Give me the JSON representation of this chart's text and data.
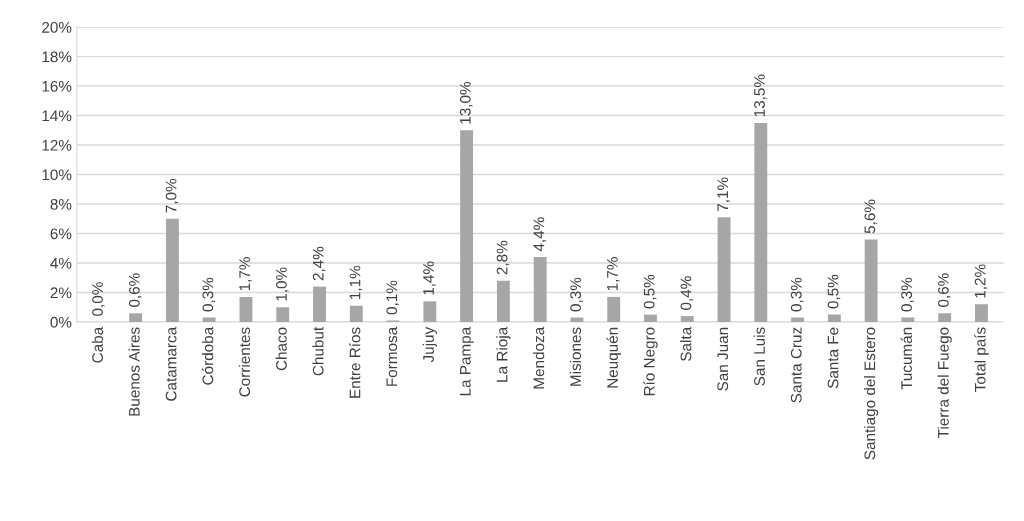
{
  "chart_data": {
    "type": "bar",
    "categories": [
      "Caba",
      "Buenos Aires",
      "Catamarca",
      "Córdoba",
      "Corrientes",
      "Chaco",
      "Chubut",
      "Entre Ríos",
      "Formosa",
      "Jujuy",
      "La Pampa",
      "La Rioja",
      "Mendoza",
      "Misiones",
      "Neuquén",
      "Río Negro",
      "Salta",
      "San Juan",
      "San Luis",
      "Santa Cruz",
      "Santa Fe",
      "Santiago del Estero",
      "Tucumán",
      "Tierra del Fuego",
      "Total país"
    ],
    "values": [
      0.0,
      0.6,
      7.0,
      0.3,
      1.7,
      1.0,
      2.4,
      1.1,
      0.1,
      1.4,
      13.0,
      2.8,
      4.4,
      0.3,
      1.7,
      0.5,
      0.4,
      7.1,
      13.5,
      0.3,
      0.5,
      5.6,
      0.3,
      0.6,
      1.2
    ],
    "value_labels": [
      "0,0%",
      "0,6%",
      "7,0%",
      "0,3%",
      "1,7%",
      "1,0%",
      "2,4%",
      "1,1%",
      "0,1%",
      "1,4%",
      "13,0%",
      "2,8%",
      "4,4%",
      "0,3%",
      "1,7%",
      "0,5%",
      "0,4%",
      "7,1%",
      "13,5%",
      "0,3%",
      "0,5%",
      "5,6%",
      "0,3%",
      "0,6%",
      "1,2%"
    ],
    "color": "#a6a6a6",
    "ylim": [
      0,
      20
    ],
    "yticks": [
      {
        "value": 0,
        "label": "0%"
      },
      {
        "value": 2,
        "label": "2%"
      },
      {
        "value": 4,
        "label": "4%"
      },
      {
        "value": 6,
        "label": "6%"
      },
      {
        "value": 8,
        "label": "8%"
      },
      {
        "value": 10,
        "label": "10%"
      },
      {
        "value": 12,
        "label": "12%"
      },
      {
        "value": 14,
        "label": "14%"
      },
      {
        "value": 16,
        "label": "16%"
      },
      {
        "value": 18,
        "label": "18%"
      },
      {
        "value": 20,
        "label": "20%"
      }
    ],
    "grid": "y"
  }
}
